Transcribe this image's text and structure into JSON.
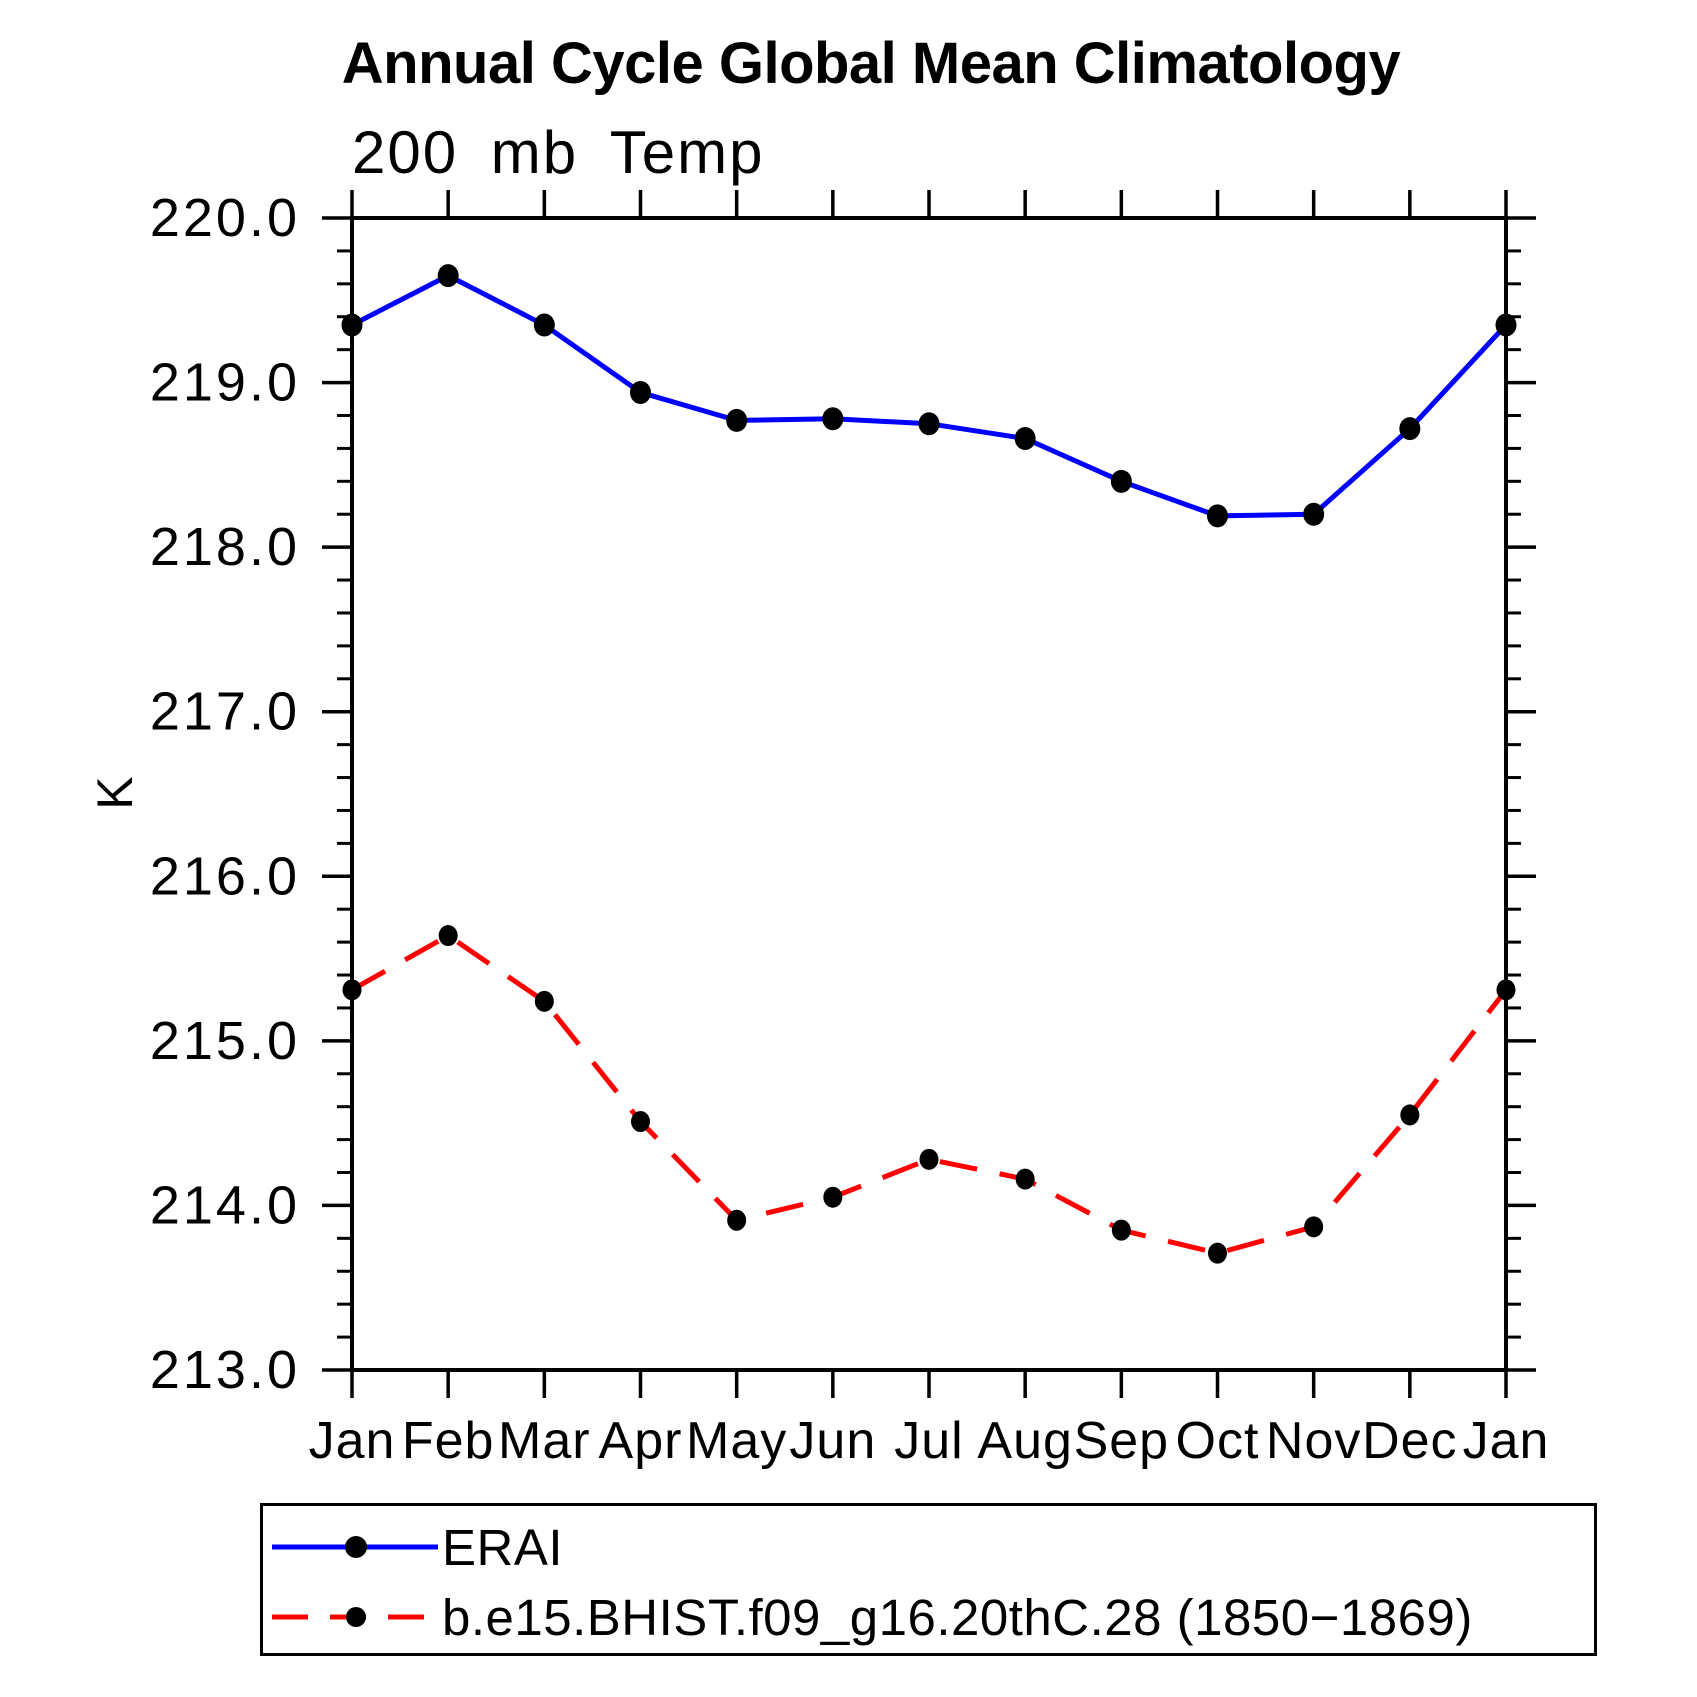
{
  "title": "Annual Cycle Global Mean Climatology",
  "subtitle": "200 mb Temp",
  "colors": {
    "erai": "#0000ff",
    "model": "#ff0000",
    "marker": "#000000",
    "axis": "#000000"
  },
  "chart_data": {
    "type": "line",
    "title": "Annual Cycle Global Mean Climatology",
    "subtitle": "200 mb Temp",
    "ylabel": "K",
    "xlabel": "",
    "ylim": [
      213.0,
      220.0
    ],
    "ytick_interval": 1.0,
    "minor_ytick_interval": 0.2,
    "grid": false,
    "legend_position": "bottom",
    "categories": [
      "Jan",
      "Feb",
      "Mar",
      "Apr",
      "May",
      "Jun",
      "Jul",
      "Aug",
      "Sep",
      "Oct",
      "Nov",
      "Dec",
      "Jan"
    ],
    "series": [
      {
        "name": "ERAI",
        "color": "#0000ff",
        "line_style": "solid",
        "marker": "filled-circle",
        "marker_color": "#000000",
        "values": [
          219.35,
          219.65,
          219.35,
          218.94,
          218.77,
          218.78,
          218.75,
          218.66,
          218.4,
          218.19,
          218.2,
          218.72,
          219.35
        ]
      },
      {
        "name": "b.e15.BHIST.f09_g16.20thC.28 (1850−1869)",
        "color": "#ff0000",
        "line_style": "dashed",
        "marker": "filled-circle",
        "marker_color": "#000000",
        "values": [
          215.31,
          215.64,
          215.24,
          214.51,
          213.91,
          214.05,
          214.28,
          214.16,
          213.85,
          213.71,
          213.87,
          214.55,
          215.31
        ]
      }
    ]
  }
}
